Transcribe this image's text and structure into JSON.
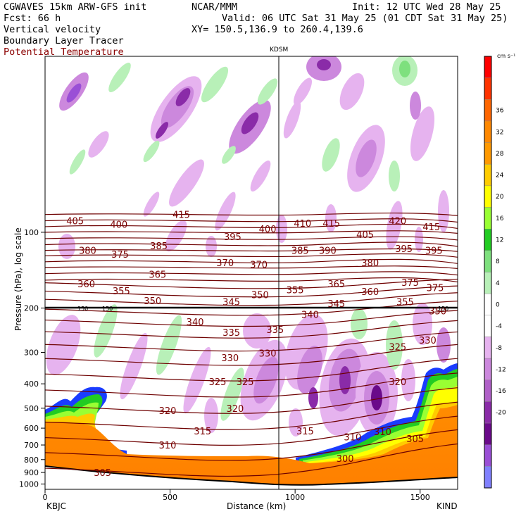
{
  "header": {
    "line1_left": "CGWAVES 15km ARW-GFS init",
    "line1_mid": "NCAR/MMM",
    "line1_right": "Init: 12 UTC Wed 28 May 25",
    "line2_left": "Fcst:   66 h",
    "line2_right": "Valid: 06 UTC Sat 31 May 25 (01 CDT Sat 31 May 25)",
    "line3_left": "Vertical velocity",
    "line3_right": "XY= 150.5,136.9 to 260.4,139.6",
    "line4_left": "Boundary Layer Tracer",
    "line5_left": "Potential Temperature"
  },
  "colors": {
    "theta": "#6e0000",
    "terrain": "#ff8c00",
    "marker_line": "#000000"
  },
  "chart_data": {
    "type": "heatmap",
    "title": "",
    "xlabel": "Distance (km)",
    "ylabel": "Pressure (hPa), log scale",
    "xlim": [
      0,
      1650
    ],
    "ylim": [
      1050,
      20
    ],
    "y_log": true,
    "x_ticks": [
      0,
      500,
      1000,
      1500
    ],
    "y_ticks": [
      100,
      200,
      300,
      400,
      500,
      600,
      700,
      800,
      900,
      1000
    ],
    "endpoint_left": "KBJC",
    "endpoint_right": "KIND",
    "marker": {
      "label": "KDSM",
      "x": 935
    },
    "tropopause_markers": [
      "150",
      "150",
      "150"
    ],
    "colorbar": {
      "unit": "cm s⁻¹",
      "levels": [
        -20,
        -16,
        -12,
        -8,
        -4,
        0,
        4,
        8,
        12,
        16,
        20,
        24,
        28,
        32,
        36
      ],
      "colors": [
        "#8080ff",
        "#9a4fd6",
        "#6a0a8a",
        "#8a2ba8",
        "#b060c8",
        "#cc88dd",
        "#e6b3ef",
        "#ffffff",
        "#ffffff",
        "#b8f0b8",
        "#7ee07e",
        "#22cc22",
        "#99ff33",
        "#ffff00",
        "#ffcc00",
        "#ff9900",
        "#ff8800",
        "#ff6600",
        "#ff3300",
        "#ff0000"
      ]
    },
    "theta_labels": [
      {
        "text": "405",
        "x": 120,
        "p": 90
      },
      {
        "text": "400",
        "x": 295,
        "p": 93
      },
      {
        "text": "415",
        "x": 545,
        "p": 85
      },
      {
        "text": "395",
        "x": 750,
        "p": 104
      },
      {
        "text": "400",
        "x": 890,
        "p": 97
      },
      {
        "text": "410",
        "x": 1030,
        "p": 92
      },
      {
        "text": "415",
        "x": 1145,
        "p": 92
      },
      {
        "text": "405",
        "x": 1280,
        "p": 102
      },
      {
        "text": "420",
        "x": 1410,
        "p": 90
      },
      {
        "text": "415",
        "x": 1545,
        "p": 95
      },
      {
        "text": "380",
        "x": 170,
        "p": 118
      },
      {
        "text": "375",
        "x": 300,
        "p": 122
      },
      {
        "text": "385",
        "x": 455,
        "p": 113
      },
      {
        "text": "370",
        "x": 720,
        "p": 132
      },
      {
        "text": "370",
        "x": 855,
        "p": 134
      },
      {
        "text": "385",
        "x": 1020,
        "p": 118
      },
      {
        "text": "390",
        "x": 1130,
        "p": 118
      },
      {
        "text": "380",
        "x": 1300,
        "p": 132
      },
      {
        "text": "395",
        "x": 1435,
        "p": 116
      },
      {
        "text": "395",
        "x": 1555,
        "p": 118
      },
      {
        "text": "365",
        "x": 450,
        "p": 147
      },
      {
        "text": "360",
        "x": 165,
        "p": 160
      },
      {
        "text": "355",
        "x": 305,
        "p": 171
      },
      {
        "text": "350",
        "x": 430,
        "p": 187
      },
      {
        "text": "345",
        "x": 745,
        "p": 189
      },
      {
        "text": "350",
        "x": 860,
        "p": 177
      },
      {
        "text": "355",
        "x": 1000,
        "p": 169
      },
      {
        "text": "365",
        "x": 1165,
        "p": 160
      },
      {
        "text": "360",
        "x": 1300,
        "p": 172
      },
      {
        "text": "345",
        "x": 1165,
        "p": 192
      },
      {
        "text": "375",
        "x": 1460,
        "p": 158
      },
      {
        "text": "375",
        "x": 1560,
        "p": 166
      },
      {
        "text": "355",
        "x": 1440,
        "p": 189
      },
      {
        "text": "350",
        "x": 1570,
        "p": 205
      },
      {
        "text": "340",
        "x": 600,
        "p": 227
      },
      {
        "text": "335",
        "x": 745,
        "p": 250
      },
      {
        "text": "335",
        "x": 920,
        "p": 243
      },
      {
        "text": "340",
        "x": 1060,
        "p": 212
      },
      {
        "text": "330",
        "x": 1530,
        "p": 268
      },
      {
        "text": "325",
        "x": 1410,
        "p": 285
      },
      {
        "text": "330",
        "x": 740,
        "p": 315
      },
      {
        "text": "330",
        "x": 890,
        "p": 302
      },
      {
        "text": "325",
        "x": 690,
        "p": 392
      },
      {
        "text": "325",
        "x": 800,
        "p": 392
      },
      {
        "text": "320",
        "x": 1410,
        "p": 392
      },
      {
        "text": "320",
        "x": 490,
        "p": 510
      },
      {
        "text": "320",
        "x": 760,
        "p": 500
      },
      {
        "text": "315",
        "x": 630,
        "p": 615
      },
      {
        "text": "315",
        "x": 1040,
        "p": 615
      },
      {
        "text": "310",
        "x": 490,
        "p": 700
      },
      {
        "text": "310",
        "x": 1230,
        "p": 650
      },
      {
        "text": "310",
        "x": 1350,
        "p": 620
      },
      {
        "text": "305",
        "x": 1480,
        "p": 660
      },
      {
        "text": "300",
        "x": 1200,
        "p": 790
      },
      {
        "text": "305",
        "x": 230,
        "p": 900
      }
    ]
  }
}
